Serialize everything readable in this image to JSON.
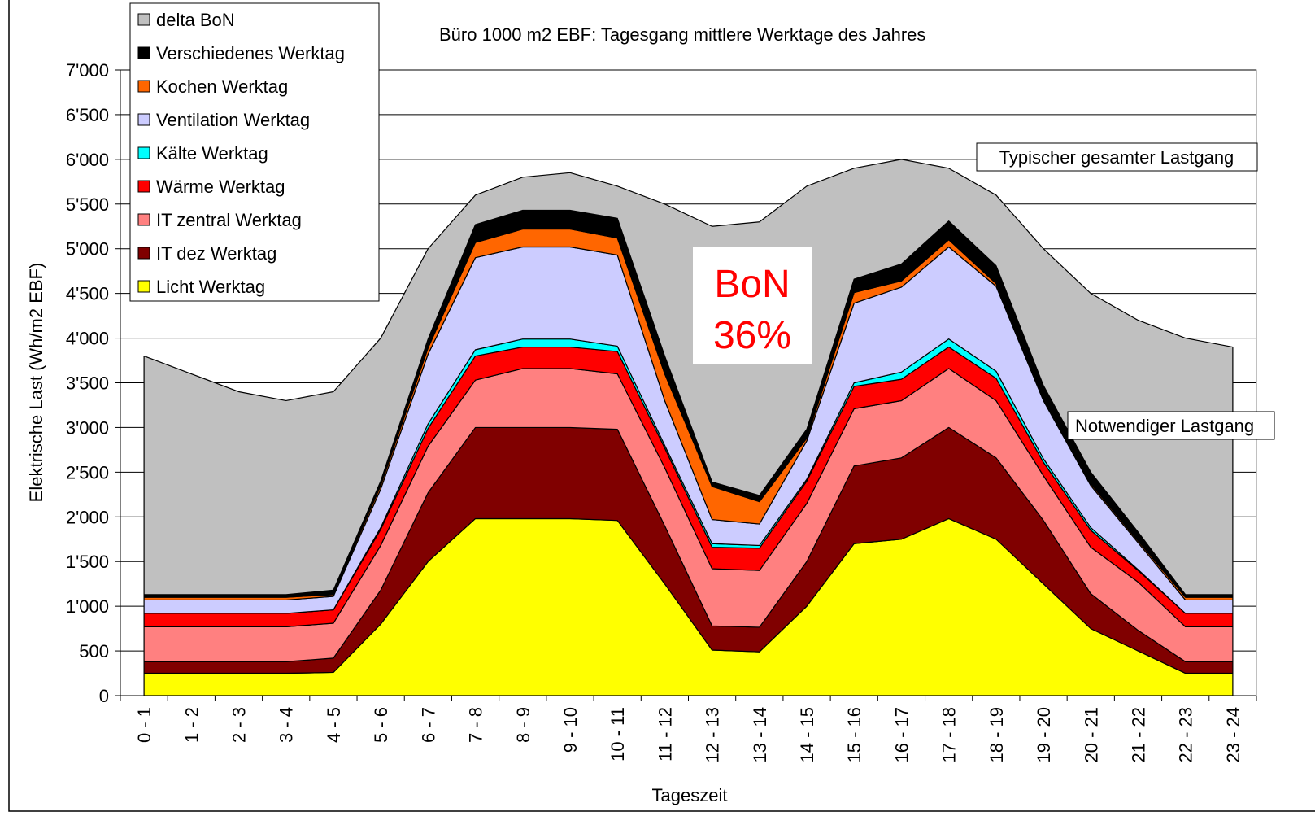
{
  "chart_data": {
    "type": "stacked_area",
    "title": "Büro 1000 m2 EBF: Tagesgang mittlere Werktage des Jahres",
    "x_label": "Tageszeit",
    "y_label": "Elektrische Last (Wh/m2 EBF)",
    "annotations": [
      "BoN",
      "36%",
      "Typischer gesamter Lastgang",
      "Notwendiger Lastgang"
    ],
    "categories": [
      "0 - 1",
      "1 - 2",
      "2 - 3",
      "3 - 4",
      "4 - 5",
      "5 - 6",
      "6 - 7",
      "7 - 8",
      "8 - 9",
      "9 - 10",
      "10 - 11",
      "11 - 12",
      "12 - 13",
      "13 - 14",
      "14 - 15",
      "15 - 16",
      "16 - 17",
      "17 - 18",
      "18 - 19",
      "19 - 20",
      "20 - 21",
      "21 - 22",
      "22 - 23",
      "23 - 24"
    ],
    "series": [
      {
        "name": "Licht Werktag",
        "color": "#ffff00",
        "values": [
          250,
          250,
          250,
          250,
          260,
          800,
          1500,
          1980,
          1980,
          1980,
          1960,
          1250,
          510,
          490,
          1000,
          1700,
          1750,
          1980,
          1750,
          1250,
          750,
          500,
          250,
          250
        ]
      },
      {
        "name": "IT dez Werktag",
        "color": "#800000",
        "values": [
          130,
          130,
          130,
          130,
          160,
          380,
          770,
          1020,
          1020,
          1020,
          1020,
          650,
          270,
          275,
          500,
          870,
          910,
          1020,
          910,
          710,
          390,
          230,
          130,
          130
        ]
      },
      {
        "name": "IT  zentral Werktag",
        "color": "#ff8080",
        "values": [
          390,
          390,
          390,
          390,
          390,
          500,
          520,
          530,
          660,
          660,
          620,
          650,
          640,
          635,
          650,
          640,
          640,
          660,
          640,
          500,
          520,
          540,
          390,
          390
        ]
      },
      {
        "name": "Wärme Werktag",
        "color": "#ff0000",
        "values": [
          150,
          150,
          150,
          150,
          150,
          180,
          200,
          270,
          240,
          240,
          250,
          220,
          240,
          250,
          250,
          250,
          240,
          240,
          250,
          150,
          190,
          130,
          150,
          150
        ]
      },
      {
        "name": "Kälte Werktag",
        "color": "#00ffff",
        "values": [
          0,
          0,
          0,
          0,
          0,
          20,
          50,
          70,
          90,
          90,
          60,
          30,
          40,
          30,
          20,
          40,
          80,
          90,
          80,
          40,
          30,
          10,
          0,
          0
        ]
      },
      {
        "name": "Ventilation Werktag",
        "color": "#ccccff",
        "values": [
          150,
          150,
          150,
          150,
          150,
          430,
          780,
          1030,
          1030,
          1030,
          1020,
          500,
          270,
          240,
          430,
          890,
          950,
          1030,
          950,
          650,
          470,
          300,
          150,
          150
        ]
      },
      {
        "name": "Kochen Werktag",
        "color": "#ff6600",
        "values": [
          30,
          30,
          30,
          30,
          20,
          40,
          70,
          170,
          200,
          200,
          190,
          300,
          370,
          250,
          30,
          120,
          70,
          80,
          30,
          20,
          20,
          20,
          30,
          30
        ]
      },
      {
        "name": "Verschiedenes Werktag",
        "color": "#000000",
        "values": [
          30,
          30,
          30,
          30,
          50,
          50,
          100,
          200,
          210,
          210,
          220,
          200,
          50,
          70,
          100,
          150,
          190,
          210,
          200,
          150,
          130,
          100,
          30,
          30
        ]
      },
      {
        "name": "delta BoN",
        "color": "#c0c0c0",
        "values": [
          2670,
          2470,
          2270,
          2170,
          2220,
          1600,
          1010,
          330,
          370,
          420,
          360,
          1700,
          2860,
          3060,
          2720,
          1240,
          1170,
          590,
          790,
          1530,
          2000,
          2370,
          2870,
          2770
        ]
      }
    ],
    "ylim": [
      0,
      7000
    ],
    "yticks": [
      0,
      500,
      {
        "value": 1000,
        "label": "1'000"
      },
      {
        "value": 1500,
        "label": "1'500"
      },
      {
        "value": 2000,
        "label": "2'000"
      },
      {
        "value": 2500,
        "label": "2'500"
      },
      {
        "value": 3000,
        "label": "3'000"
      },
      {
        "value": 3500,
        "label": "3'500"
      },
      {
        "value": 4000,
        "label": "4'000"
      },
      {
        "value": 4500,
        "label": "4'500"
      },
      {
        "value": 5000,
        "label": "5'000"
      },
      {
        "value": 5500,
        "label": "5'500"
      },
      {
        "value": 6000,
        "label": "6'000"
      },
      {
        "value": 6500,
        "label": "6'500"
      },
      {
        "value": 7000,
        "label": "7'000"
      }
    ],
    "grid": true,
    "legend": "top-left"
  }
}
